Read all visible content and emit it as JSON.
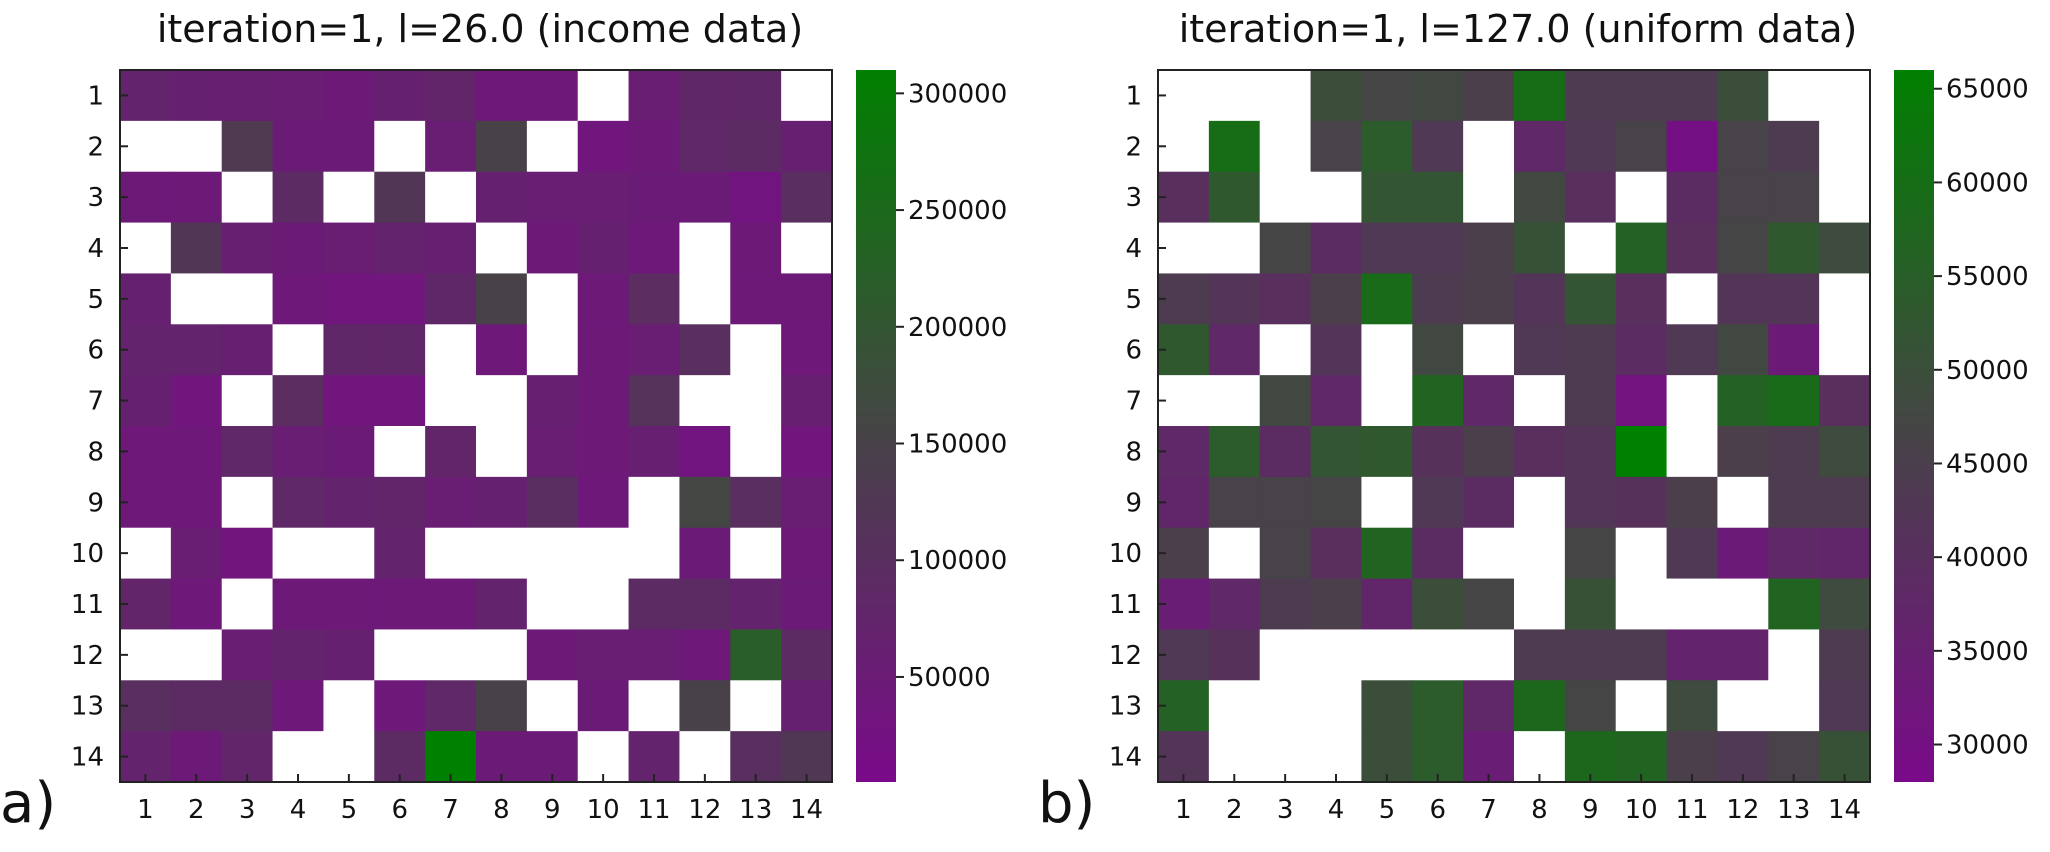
{
  "colors": {
    "low": "#7a0a8a",
    "mid": "#454545",
    "high": "#008000",
    "empty": "#ffffff"
  },
  "chart_data": [
    {
      "type": "heatmap",
      "panel_label": "a)",
      "title": "iteration=1, l=26.0 (income data)",
      "x": [
        "1",
        "2",
        "3",
        "4",
        "5",
        "6",
        "7",
        "8",
        "9",
        "10",
        "11",
        "12",
        "13",
        "14"
      ],
      "y": [
        "1",
        "2",
        "3",
        "4",
        "5",
        "6",
        "7",
        "8",
        "9",
        "10",
        "11",
        "12",
        "13",
        "14"
      ],
      "colorbar": {
        "min": 5000,
        "max": 310000,
        "ticks": [
          50000,
          100000,
          150000,
          200000,
          250000,
          300000
        ]
      },
      "grid": false,
      "values": [
        [
          70000,
          65000,
          60000,
          55000,
          45000,
          65000,
          75000,
          40000,
          40000,
          null,
          55000,
          80000,
          80000,
          null
        ],
        [
          null,
          null,
          130000,
          50000,
          50000,
          null,
          55000,
          150000,
          null,
          35000,
          45000,
          85000,
          90000,
          60000
        ],
        [
          45000,
          45000,
          null,
          90000,
          null,
          120000,
          null,
          65000,
          55000,
          55000,
          50000,
          50000,
          30000,
          100000
        ],
        [
          null,
          120000,
          60000,
          50000,
          55000,
          70000,
          60000,
          null,
          45000,
          65000,
          40000,
          null,
          45000,
          null
        ],
        [
          65000,
          null,
          null,
          40000,
          35000,
          35000,
          80000,
          150000,
          null,
          45000,
          95000,
          null,
          45000,
          45000
        ],
        [
          70000,
          70000,
          60000,
          null,
          80000,
          80000,
          null,
          40000,
          null,
          45000,
          55000,
          100000,
          null,
          40000
        ],
        [
          65000,
          35000,
          null,
          95000,
          35000,
          35000,
          null,
          null,
          60000,
          45000,
          110000,
          null,
          null,
          60000
        ],
        [
          40000,
          40000,
          85000,
          55000,
          50000,
          null,
          75000,
          null,
          55000,
          45000,
          60000,
          30000,
          null,
          35000
        ],
        [
          40000,
          40000,
          null,
          85000,
          70000,
          75000,
          55000,
          65000,
          100000,
          40000,
          null,
          160000,
          100000,
          55000
        ],
        [
          null,
          55000,
          35000,
          null,
          null,
          70000,
          null,
          null,
          null,
          null,
          null,
          50000,
          null,
          45000
        ],
        [
          75000,
          40000,
          null,
          45000,
          45000,
          45000,
          45000,
          70000,
          null,
          null,
          90000,
          90000,
          70000,
          50000
        ],
        [
          null,
          null,
          55000,
          70000,
          65000,
          null,
          null,
          null,
          45000,
          55000,
          55000,
          40000,
          220000,
          90000
        ],
        [
          100000,
          90000,
          90000,
          40000,
          null,
          40000,
          85000,
          150000,
          null,
          50000,
          null,
          150000,
          null,
          65000
        ],
        [
          70000,
          45000,
          75000,
          null,
          null,
          90000,
          310000,
          50000,
          50000,
          null,
          70000,
          null,
          100000,
          125000
        ]
      ]
    },
    {
      "type": "heatmap",
      "panel_label": "b)",
      "title": "iteration=1, l=127.0 (uniform data)",
      "x": [
        "1",
        "2",
        "3",
        "4",
        "5",
        "6",
        "7",
        "8",
        "9",
        "10",
        "11",
        "12",
        "13",
        "14"
      ],
      "y": [
        "1",
        "2",
        "3",
        "4",
        "5",
        "6",
        "7",
        "8",
        "9",
        "10",
        "11",
        "12",
        "13",
        "14"
      ],
      "colorbar": {
        "min": 28000,
        "max": 66000,
        "ticks": [
          30000,
          35000,
          40000,
          45000,
          50000,
          55000,
          60000,
          65000
        ]
      },
      "grid": false,
      "values": [
        [
          null,
          null,
          null,
          50000,
          47000,
          48000,
          45000,
          60000,
          44000,
          44000,
          44000,
          50000,
          null,
          null
        ],
        [
          null,
          60000,
          null,
          46000,
          54000,
          43000,
          null,
          38000,
          43000,
          46000,
          30000,
          46000,
          44000,
          null
        ],
        [
          40000,
          53000,
          null,
          null,
          52000,
          52000,
          null,
          48000,
          40000,
          null,
          39000,
          46000,
          46000,
          null
        ],
        [
          null,
          null,
          47000,
          39000,
          43000,
          43000,
          45000,
          51000,
          null,
          56000,
          40000,
          47000,
          53000,
          49000
        ],
        [
          44000,
          42000,
          40000,
          45000,
          59000,
          44000,
          45000,
          42000,
          52000,
          40000,
          null,
          42000,
          42000,
          null
        ],
        [
          53000,
          38000,
          null,
          42000,
          null,
          48000,
          null,
          43000,
          44000,
          39000,
          43000,
          48000,
          33000,
          null
        ],
        [
          null,
          null,
          48000,
          38000,
          null,
          57000,
          38000,
          null,
          44000,
          31000,
          null,
          56000,
          59000,
          40000
        ],
        [
          38000,
          54000,
          39000,
          52000,
          53000,
          41000,
          45000,
          40000,
          42000,
          66000,
          null,
          45000,
          44000,
          49000
        ],
        [
          37000,
          46000,
          46000,
          47000,
          null,
          43000,
          39000,
          null,
          42000,
          41000,
          45000,
          null,
          44000,
          44000
        ],
        [
          45000,
          null,
          46000,
          40000,
          57000,
          39000,
          null,
          null,
          47000,
          null,
          43000,
          33000,
          38000,
          37000
        ],
        [
          34000,
          38000,
          44000,
          45000,
          37000,
          50000,
          47000,
          null,
          51000,
          null,
          null,
          null,
          57000,
          49000
        ],
        [
          43000,
          41000,
          null,
          null,
          null,
          null,
          null,
          44000,
          44000,
          44000,
          36000,
          36000,
          null,
          44000
        ],
        [
          56000,
          null,
          null,
          null,
          50000,
          54000,
          38000,
          58000,
          47000,
          null,
          49000,
          null,
          null,
          43000
        ],
        [
          42000,
          null,
          null,
          null,
          50000,
          54000,
          34000,
          null,
          58000,
          57000,
          45000,
          43000,
          46000,
          51000
        ]
      ]
    }
  ]
}
